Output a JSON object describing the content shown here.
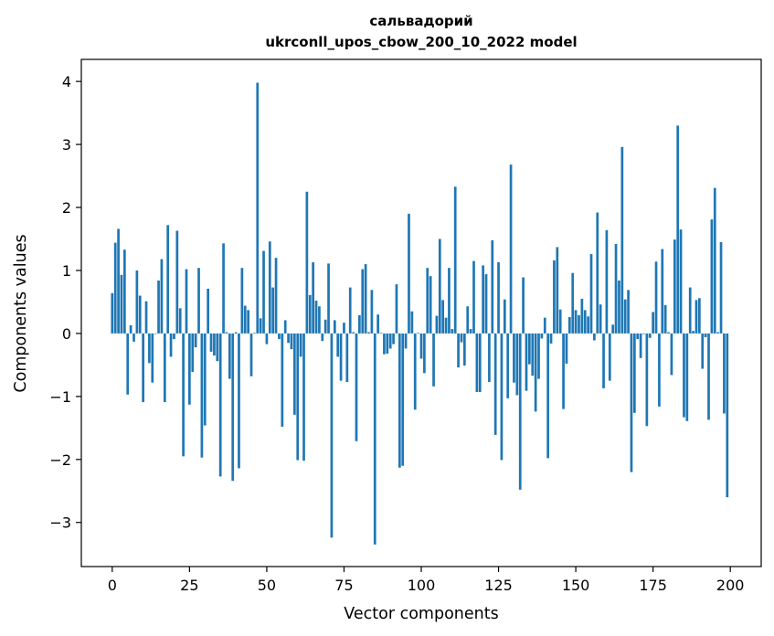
{
  "chart_data": {
    "type": "bar",
    "title_line1": "сальвадорий",
    "title_line2": "ukrconll_upos_cbow_200_10_2022 model",
    "xlabel": "Vector components",
    "ylabel": "Components values",
    "xlim": [
      -10,
      210
    ],
    "ylim": [
      -3.7,
      4.35
    ],
    "xticks": [
      0,
      25,
      50,
      75,
      100,
      125,
      150,
      175,
      200
    ],
    "yticks": [
      -3,
      -2,
      -1,
      0,
      1,
      2,
      3,
      4
    ],
    "bar_color": "#1f77b4",
    "grid": false,
    "values": [
      0.64,
      1.44,
      1.66,
      0.93,
      1.33,
      -0.97,
      0.13,
      -0.13,
      1.0,
      0.6,
      -1.09,
      0.51,
      -0.47,
      -0.78,
      0.0,
      0.84,
      1.18,
      -1.09,
      1.72,
      -0.37,
      -0.09,
      1.63,
      0.4,
      -1.95,
      1.02,
      -1.13,
      -0.61,
      -0.22,
      1.04,
      -1.97,
      -1.46,
      0.71,
      -0.29,
      -0.35,
      -0.44,
      -2.27,
      1.43,
      0.02,
      -0.72,
      -2.34,
      0.02,
      -2.14,
      1.04,
      0.44,
      0.37,
      -0.68,
      0.01,
      3.98,
      0.24,
      1.31,
      -0.17,
      1.46,
      0.73,
      1.2,
      -0.09,
      -1.48,
      0.21,
      -0.15,
      -0.25,
      -1.29,
      -2.01,
      -0.37,
      -2.02,
      2.25,
      0.61,
      1.13,
      0.52,
      0.43,
      -0.12,
      0.22,
      1.11,
      -3.24,
      0.21,
      -0.37,
      -0.75,
      0.17,
      -0.77,
      0.73,
      0.02,
      -1.71,
      0.29,
      1.02,
      1.1,
      0.02,
      0.69,
      -3.35,
      0.3,
      0.01,
      -0.33,
      -0.32,
      -0.24,
      -0.17,
      0.78,
      -2.13,
      -2.1,
      -0.24,
      1.9,
      0.35,
      -1.21,
      0.01,
      -0.4,
      -0.63,
      1.04,
      0.91,
      -0.84,
      0.28,
      1.5,
      0.53,
      0.25,
      1.04,
      0.07,
      2.33,
      -0.54,
      -0.14,
      -0.51,
      0.43,
      0.07,
      1.15,
      -0.93,
      -0.93,
      1.08,
      0.94,
      -0.77,
      1.48,
      -1.61,
      1.13,
      -2.01,
      0.54,
      -1.03,
      2.68,
      -0.78,
      -0.98,
      -2.48,
      0.89,
      -0.91,
      -0.49,
      -0.67,
      -1.24,
      -0.72,
      -0.08,
      0.25,
      -1.98,
      -0.16,
      1.16,
      1.37,
      0.38,
      -1.2,
      -0.48,
      0.26,
      0.96,
      0.37,
      0.29,
      0.55,
      0.37,
      0.27,
      1.26,
      -0.11,
      1.92,
      0.46,
      -0.87,
      1.64,
      -0.75,
      0.14,
      1.42,
      0.84,
      2.96,
      0.54,
      0.69,
      -2.2,
      -1.26,
      -0.09,
      -0.39,
      -0.01,
      -1.47,
      -0.07,
      0.34,
      1.14,
      -1.16,
      1.34,
      0.45,
      0.02,
      -0.66,
      1.49,
      3.3,
      1.65,
      -1.33,
      -1.39,
      0.73,
      0.04,
      0.53,
      0.56,
      -0.56,
      -0.06,
      -1.37,
      1.81,
      2.31,
      0.02,
      1.45,
      -1.27,
      -2.6
    ]
  }
}
